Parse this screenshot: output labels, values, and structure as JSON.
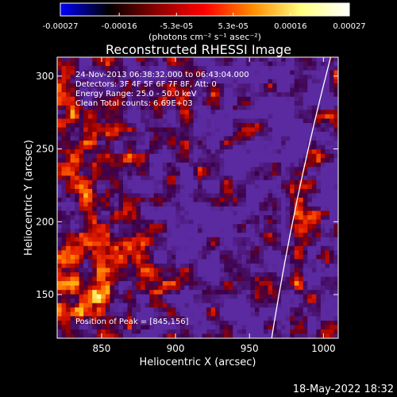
{
  "chart_data": {
    "type": "heatmap",
    "title": "Reconstructed RHESSI Image",
    "xlabel": "Heliocentric X (arcsec)",
    "ylabel": "Heliocentric Y (arcsec)",
    "xlim": [
      820,
      1010
    ],
    "ylim": [
      120,
      313
    ],
    "xticks": [
      850,
      900,
      950,
      1000
    ],
    "yticks": [
      150,
      200,
      250,
      300
    ],
    "colorbar": {
      "range": [
        -0.00027,
        0.00027
      ],
      "tick_values": [
        -0.00027,
        -0.00016,
        -5.3e-05,
        5.3e-05,
        0.00016,
        0.00027
      ],
      "tick_labels": [
        "-0.00027",
        "-0.00016",
        "-5.3e-05",
        "5.3e-05",
        "0.00016",
        "0.00027"
      ],
      "units": "(photons cm⁻² s⁻¹ asec⁻²)",
      "colors": [
        "#0000ff",
        "#000000",
        "#8b0000",
        "#ff0000",
        "#ff8c00",
        "#ffff80",
        "#ffffff"
      ]
    },
    "annotations": [
      "24-Nov-2013 06:38:32.000 to 06:43:04.000",
      "Detectors: 3F 4F 5F 6F 7F 8F, Att: 0",
      "Energy Range: 25.0 - 50.0 keV",
      "Clean    Total counts: 6.69E+03"
    ],
    "peak_label": "Position of Peak = [845,156]",
    "peak": [
      845,
      156
    ],
    "limb_color": "#ffffff",
    "background_color": "#5b2aa0"
  },
  "timestamp": "18-May-2022 18:32"
}
